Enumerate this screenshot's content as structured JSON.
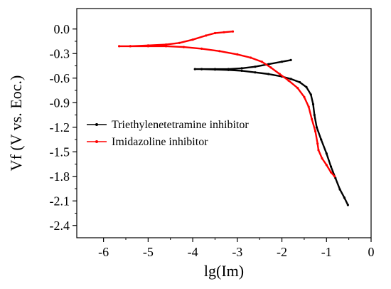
{
  "chart_data": {
    "type": "line",
    "title": "",
    "xlabel": "lg(Im)",
    "ylabel": "Vf (V vs. Eoc.)",
    "xlim": [
      -6.6,
      0
    ],
    "ylim": [
      -2.55,
      0.25
    ],
    "xticks": [
      -6,
      -5,
      -4,
      -3,
      -2,
      -1,
      0
    ],
    "xtick_labels": [
      "-6",
      "-5",
      "-4",
      "-3",
      "-2",
      "-1",
      "0"
    ],
    "yticks": [
      0.0,
      -0.3,
      -0.6,
      -0.9,
      -1.2,
      -1.5,
      -1.8,
      -2.1,
      -2.4
    ],
    "ytick_labels": [
      "0.0",
      "-0.3",
      "-0.6",
      "-0.9",
      "-1.2",
      "-1.5",
      "-1.8",
      "-2.1",
      "-2.4"
    ],
    "grid": false,
    "legend_position": "center-left",
    "series": [
      {
        "name": "Triethylenetetramine inhibitor",
        "color": "#000000",
        "points": [
          [
            -1.8,
            -0.38
          ],
          [
            -2.0,
            -0.4
          ],
          [
            -2.3,
            -0.43
          ],
          [
            -2.6,
            -0.46
          ],
          [
            -2.9,
            -0.48
          ],
          [
            -3.2,
            -0.49
          ],
          [
            -3.5,
            -0.49
          ],
          [
            -3.8,
            -0.49
          ],
          [
            -3.95,
            -0.49
          ],
          [
            -3.8,
            -0.49
          ],
          [
            -3.5,
            -0.495
          ],
          [
            -3.2,
            -0.5
          ],
          [
            -2.9,
            -0.51
          ],
          [
            -2.6,
            -0.53
          ],
          [
            -2.3,
            -0.55
          ],
          [
            -2.0,
            -0.58
          ],
          [
            -1.8,
            -0.61
          ],
          [
            -1.6,
            -0.65
          ],
          [
            -1.45,
            -0.71
          ],
          [
            -1.35,
            -0.8
          ],
          [
            -1.3,
            -0.92
          ],
          [
            -1.27,
            -1.05
          ],
          [
            -1.22,
            -1.2
          ],
          [
            -1.12,
            -1.35
          ],
          [
            -1.0,
            -1.52
          ],
          [
            -0.9,
            -1.68
          ],
          [
            -0.8,
            -1.82
          ],
          [
            -0.7,
            -1.96
          ],
          [
            -0.6,
            -2.06
          ],
          [
            -0.52,
            -2.15
          ]
        ]
      },
      {
        "name": "Imidazoline inhibitor",
        "color": "#ff0000",
        "points": [
          [
            -3.1,
            -0.03
          ],
          [
            -3.3,
            -0.04
          ],
          [
            -3.5,
            -0.05
          ],
          [
            -3.7,
            -0.08
          ],
          [
            -4.0,
            -0.13
          ],
          [
            -4.3,
            -0.17
          ],
          [
            -4.6,
            -0.19
          ],
          [
            -5.0,
            -0.2
          ],
          [
            -5.4,
            -0.21
          ],
          [
            -5.65,
            -0.21
          ],
          [
            -5.4,
            -0.21
          ],
          [
            -5.0,
            -0.21
          ],
          [
            -4.6,
            -0.21
          ],
          [
            -4.2,
            -0.22
          ],
          [
            -3.8,
            -0.24
          ],
          [
            -3.4,
            -0.27
          ],
          [
            -3.0,
            -0.31
          ],
          [
            -2.7,
            -0.35
          ],
          [
            -2.45,
            -0.4
          ],
          [
            -2.25,
            -0.47
          ],
          [
            -2.05,
            -0.55
          ],
          [
            -1.85,
            -0.63
          ],
          [
            -1.65,
            -0.72
          ],
          [
            -1.5,
            -0.83
          ],
          [
            -1.4,
            -0.95
          ],
          [
            -1.33,
            -1.1
          ],
          [
            -1.25,
            -1.25
          ],
          [
            -1.2,
            -1.4
          ],
          [
            -1.18,
            -1.48
          ],
          [
            -1.1,
            -1.58
          ],
          [
            -1.0,
            -1.66
          ],
          [
            -0.9,
            -1.75
          ],
          [
            -0.82,
            -1.8
          ]
        ]
      }
    ]
  }
}
